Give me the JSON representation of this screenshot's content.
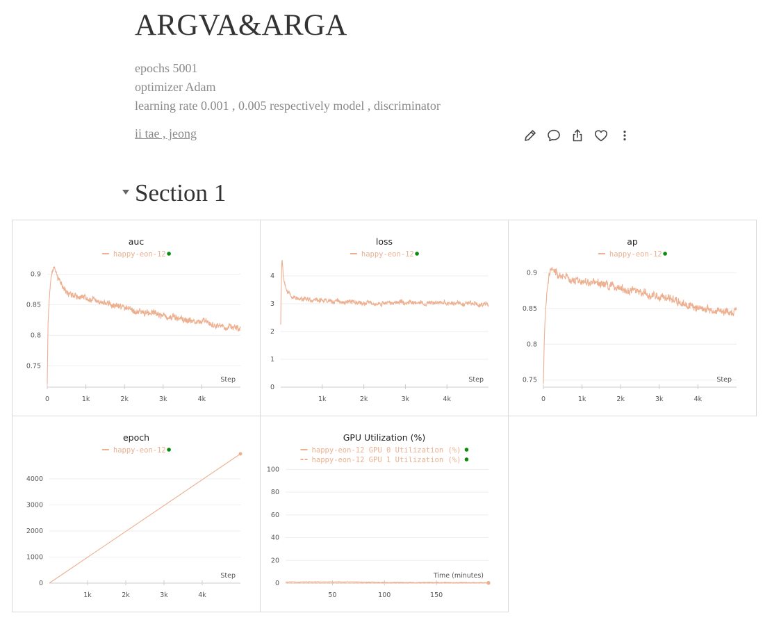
{
  "report": {
    "title": "ARGVA&ARGA",
    "description": [
      "epochs 5001",
      "optimizer Adam",
      "learning rate 0.001 , 0.005 respectively model , discriminator"
    ],
    "author": "ii tae , jeong"
  },
  "actions": [
    {
      "name": "edit",
      "icon": "pencil-icon"
    },
    {
      "name": "comment",
      "icon": "comment-icon"
    },
    {
      "name": "share",
      "icon": "share-icon"
    },
    {
      "name": "like",
      "icon": "heart-icon"
    },
    {
      "name": "more",
      "icon": "more-vertical-icon"
    }
  ],
  "section": {
    "title": "Section 1"
  },
  "colors": {
    "series": "#ecb090",
    "run_status": "#0a8a0a",
    "grid": "#eeeeee"
  },
  "chart_data": [
    {
      "id": "auc",
      "type": "line",
      "title": "auc",
      "xlabel": "Step",
      "ylabel": "",
      "xlim": [
        0,
        5000
      ],
      "ylim": [
        0.715,
        0.92
      ],
      "xticks": [
        0,
        1000,
        2000,
        3000,
        4000
      ],
      "xtick_labels": [
        "0",
        "1k",
        "2k",
        "3k",
        "4k"
      ],
      "yticks": [
        0.75,
        0.8,
        0.85,
        0.9
      ],
      "ytick_labels": [
        "0.75",
        "0.8",
        "0.85",
        "0.9"
      ],
      "series": [
        {
          "name": "happy-eon-12",
          "x": [
            0,
            20,
            50,
            100,
            150,
            200,
            300,
            400,
            500,
            700,
            900,
            1200,
            1500,
            1800,
            2100,
            2400,
            2700,
            3000,
            3300,
            3600,
            3900,
            4200,
            4500,
            4800,
            5000
          ],
          "y": [
            0.72,
            0.82,
            0.86,
            0.9,
            0.91,
            0.905,
            0.89,
            0.882,
            0.872,
            0.865,
            0.862,
            0.858,
            0.852,
            0.847,
            0.843,
            0.839,
            0.836,
            0.832,
            0.83,
            0.826,
            0.822,
            0.818,
            0.815,
            0.812,
            0.81
          ],
          "noise": 0.006
        }
      ]
    },
    {
      "id": "loss",
      "type": "line",
      "title": "loss",
      "xlabel": "Step",
      "ylabel": "",
      "xlim": [
        0,
        5000
      ],
      "ylim": [
        0,
        4.5
      ],
      "xticks": [
        1000,
        2000,
        3000,
        4000
      ],
      "xtick_labels": [
        "1k",
        "2k",
        "3k",
        "4k"
      ],
      "yticks": [
        0,
        1,
        2,
        3,
        4
      ],
      "ytick_labels": [
        "0",
        "1",
        "2",
        "3",
        "4"
      ],
      "series": [
        {
          "name": "happy-eon-12",
          "x": [
            0,
            10,
            30,
            60,
            100,
            150,
            250,
            400,
            600,
            1000,
            1500,
            2000,
            2500,
            3000,
            3500,
            4000,
            4500,
            5000
          ],
          "y": [
            2.25,
            3.6,
            4.7,
            4.1,
            3.75,
            3.45,
            3.3,
            3.2,
            3.15,
            3.12,
            3.07,
            3.03,
            3.02,
            3.05,
            3.04,
            3.03,
            3.0,
            2.97
          ],
          "noise": 0.09
        }
      ]
    },
    {
      "id": "ap",
      "type": "line",
      "title": "ap",
      "xlabel": "Step",
      "ylabel": "",
      "xlim": [
        0,
        5000
      ],
      "ylim": [
        0.74,
        0.915
      ],
      "xticks": [
        0,
        1000,
        2000,
        3000,
        4000
      ],
      "xtick_labels": [
        "0",
        "1k",
        "2k",
        "3k",
        "4k"
      ],
      "yticks": [
        0.75,
        0.8,
        0.85,
        0.9
      ],
      "ytick_labels": [
        "0.75",
        "0.8",
        "0.85",
        "0.9"
      ],
      "series": [
        {
          "name": "happy-eon-12",
          "x": [
            0,
            20,
            50,
            100,
            150,
            200,
            300,
            400,
            500,
            700,
            900,
            1200,
            1500,
            1800,
            2100,
            2400,
            2700,
            3000,
            3300,
            3600,
            3900,
            4200,
            4500,
            4800,
            5000
          ],
          "y": [
            0.745,
            0.8,
            0.845,
            0.88,
            0.9,
            0.905,
            0.903,
            0.898,
            0.895,
            0.89,
            0.887,
            0.885,
            0.885,
            0.88,
            0.876,
            0.873,
            0.87,
            0.866,
            0.863,
            0.859,
            0.855,
            0.85,
            0.847,
            0.845,
            0.847
          ],
          "noise": 0.006
        }
      ]
    },
    {
      "id": "epoch",
      "type": "line",
      "title": "epoch",
      "xlabel": "Step",
      "ylabel": "",
      "xlim": [
        0,
        5000
      ],
      "ylim": [
        0,
        4800
      ],
      "xticks": [
        1000,
        2000,
        3000,
        4000
      ],
      "xtick_labels": [
        "1k",
        "2k",
        "3k",
        "4k"
      ],
      "yticks": [
        0,
        1000,
        2000,
        3000,
        4000
      ],
      "ytick_labels": [
        "0",
        "1000",
        "2000",
        "3000",
        "4000"
      ],
      "series": [
        {
          "name": "happy-eon-12",
          "x": [
            0,
            5000
          ],
          "y": [
            0,
            5000
          ],
          "noise": 0
        }
      ]
    },
    {
      "id": "gpu",
      "type": "line",
      "title": "GPU Utilization (%)",
      "xlabel": "Time (minutes)",
      "ylabel": "",
      "xlim": [
        5,
        200
      ],
      "ylim": [
        0,
        110
      ],
      "xticks": [
        50,
        100,
        150
      ],
      "xtick_labels": [
        "50",
        "100",
        "150"
      ],
      "yticks": [
        0,
        20,
        40,
        60,
        80,
        100
      ],
      "ytick_labels": [
        "0",
        "20",
        "40",
        "60",
        "80",
        "100"
      ],
      "series": [
        {
          "name": "happy-eon-12 GPU 0 Utilization (%)",
          "x": [
            5,
            60,
            110,
            160,
            200
          ],
          "y": [
            1,
            1,
            0.6,
            0.5,
            0.4
          ],
          "noise": 0.3
        },
        {
          "name": "happy-eon-12 GPU 1 Utilization (%)",
          "x": [
            5,
            200
          ],
          "y": [
            0,
            0
          ],
          "noise": 0
        }
      ]
    }
  ]
}
